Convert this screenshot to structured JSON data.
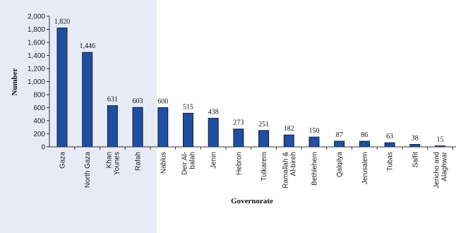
{
  "chart_data": {
    "type": "bar",
    "xlabel": "Governorate",
    "ylabel": "Number",
    "ylim": [
      0,
      2000
    ],
    "yticks": [
      "0",
      "200",
      "400",
      "600",
      "800",
      "1,000",
      "1,200",
      "1,400",
      "1,600",
      "1,800",
      "2,000"
    ],
    "categories": [
      "Gaza",
      "North Gaza",
      "Khan Younes",
      "Rafah",
      "Nablus",
      "Deir Al-balah",
      "Jenin",
      "Hebron",
      "Tulkarem",
      "Ramallah & Al-bireh",
      "Bethlehem",
      "Qalqilya",
      "Jerusalem",
      "Tubas",
      "Salfit",
      "Jericho and Alaghwar"
    ],
    "category_label_lines": [
      [
        "Gaza"
      ],
      [
        "North Gaza"
      ],
      [
        "Khan",
        "Younes"
      ],
      [
        "Rafah"
      ],
      [
        "Nablus"
      ],
      [
        "Deir Al-",
        "balah"
      ],
      [
        "Jenin"
      ],
      [
        "Hebron"
      ],
      [
        "Tulkarem"
      ],
      [
        "Ramallah &",
        "Al-bireh"
      ],
      [
        "Bethlehem"
      ],
      [
        "Qalqilya"
      ],
      [
        "Jerusalem"
      ],
      [
        "Tubas"
      ],
      [
        "Salfit"
      ],
      [
        "Jericho and",
        "Alaghwar"
      ]
    ],
    "values": [
      1820,
      1446,
      631,
      603,
      600,
      515,
      438,
      273,
      251,
      182,
      150,
      87,
      86,
      63,
      38,
      15
    ],
    "data_labels": [
      "1,820",
      "1,446",
      "631",
      "603",
      "600",
      "515",
      "438",
      "273",
      "251",
      "182",
      "150",
      "87",
      "86",
      "63",
      "38",
      "15"
    ],
    "colors": {
      "bar": "#1F4FA0",
      "bar_edge": "#0D1F45",
      "shaded_region": "#E6EBF6"
    },
    "shaded_categories": [
      "Gaza",
      "North Gaza",
      "Khan Younes",
      "Rafah"
    ],
    "grid": false,
    "legend": "none"
  }
}
